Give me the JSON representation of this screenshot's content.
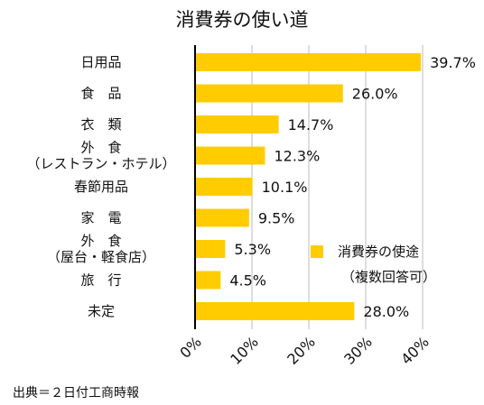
{
  "chart_data": {
    "type": "bar",
    "orientation": "horizontal",
    "title": "消費券の使い道",
    "categories": [
      [
        "日用品"
      ],
      [
        "食　品"
      ],
      [
        "衣　類"
      ],
      [
        "外　食",
        "（レストラン・ホテル）"
      ],
      [
        "春節用品"
      ],
      [
        "家　電"
      ],
      [
        "外　食",
        "（屋台・軽食店）"
      ],
      [
        "旅　行"
      ],
      [
        "未定"
      ]
    ],
    "series": [
      {
        "name": "消費券の使途",
        "values": [
          39.7,
          26.0,
          14.7,
          12.3,
          10.1,
          9.5,
          5.3,
          4.5,
          28.0
        ],
        "labels": [
          "39.7%",
          "26.0%",
          "14.7%",
          "12.3%",
          "10.1%",
          "9.5%",
          "5.3%",
          "4.5%",
          "28.0%"
        ]
      }
    ],
    "legend_note": "（複数回答可）",
    "xlim": [
      0,
      40
    ],
    "xticks": [
      0,
      10,
      20,
      30,
      40
    ],
    "xtick_labels": [
      "0%",
      "10%",
      "20%",
      "30%",
      "40%"
    ],
    "grid": "vertical",
    "legend_position": "right-middle",
    "source": "出典＝２日付工商時報",
    "colors": {
      "bar": "#FFCC00",
      "grid": "#bbbbbb",
      "axis": "#000000"
    }
  }
}
